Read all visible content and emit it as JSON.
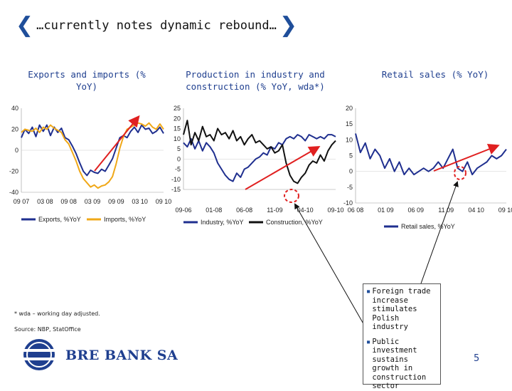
{
  "slide": {
    "title": "…currently notes dynamic rebound…",
    "footnote": "* wda – working day adjusted.",
    "source": "Source: NBP, StatOffice",
    "bank_name": "BRE BANK SA",
    "page_number": "5",
    "callout": {
      "items": [
        "Foreign trade increase stimulates Polish industry",
        "Public investment sustains growth in construction sector"
      ]
    }
  },
  "colors": {
    "navy": "#1f2f8f",
    "orange": "#f0a818",
    "black": "#111111",
    "arrow_red": "#e02020",
    "accent_blue": "#1f4e9a"
  },
  "chart_data": [
    {
      "type": "line",
      "title": "Exports and imports (% YoY)",
      "x_tick_labels": [
        "09 07",
        "03 08",
        "09 08",
        "03 09",
        "09 09",
        "03 10",
        "09 10"
      ],
      "ylim": [
        -40,
        40
      ],
      "y_ticks": [
        -40,
        -20,
        0,
        20,
        40
      ],
      "legend_position": "bottom",
      "series": [
        {
          "name": "Exports, %YoY",
          "color": "#1f2f8f",
          "values": [
            12,
            20,
            16,
            22,
            13,
            24,
            18,
            24,
            14,
            22,
            17,
            21,
            12,
            10,
            4,
            -3,
            -12,
            -20,
            -24,
            -19,
            -21,
            -22,
            -18,
            -20,
            -14,
            -8,
            2,
            12,
            14,
            12,
            18,
            22,
            17,
            24,
            20,
            21,
            16,
            18,
            22,
            16
          ]
        },
        {
          "name": "Imports, %YoY",
          "color": "#f0a818",
          "values": [
            17,
            20,
            19,
            18,
            21,
            17,
            22,
            20,
            24,
            21,
            19,
            17,
            10,
            6,
            -2,
            -10,
            -20,
            -27,
            -31,
            -35,
            -33,
            -36,
            -34,
            -33,
            -30,
            -25,
            -13,
            2,
            13,
            20,
            22,
            24,
            26,
            25,
            23,
            26,
            22,
            20,
            25,
            20
          ]
        }
      ]
    },
    {
      "type": "line",
      "title": "Production in industry and construction (% YoY, wda*)",
      "x_tick_labels": [
        "09-06",
        "01-08",
        "06-08",
        "11-09",
        "04-10",
        "09-10"
      ],
      "ylim": [
        -15,
        25
      ],
      "y_ticks": [
        -15,
        -10,
        -5,
        0,
        5,
        10,
        15,
        20,
        25
      ],
      "legend_position": "bottom",
      "series": [
        {
          "name": "Industry, %YoY",
          "color": "#1f2f8f",
          "values": [
            8,
            6,
            10,
            5,
            9,
            4,
            8,
            6,
            3,
            -2,
            -5,
            -8,
            -10,
            -11,
            -7,
            -9,
            -5,
            -4,
            -2,
            0,
            1,
            3,
            2,
            6,
            5,
            8,
            7,
            10,
            11,
            10,
            12,
            11,
            9,
            12,
            11,
            10,
            11,
            10,
            12,
            12,
            11
          ]
        },
        {
          "name": "Construction, %YoY",
          "color": "#111111",
          "values": [
            12,
            19,
            7,
            13,
            9,
            16,
            11,
            12,
            9,
            15,
            12,
            13,
            10,
            14,
            9,
            11,
            7,
            10,
            12,
            8,
            9,
            7,
            5,
            6,
            3,
            4,
            7,
            -2,
            -8,
            -11,
            -12,
            -9,
            -7,
            -3,
            -1,
            -2,
            2,
            -1,
            4,
            7,
            9
          ]
        }
      ]
    },
    {
      "type": "line",
      "title": "Retail sales (% YoY)",
      "x_tick_labels": [
        "06 08",
        "01 09",
        "06 09",
        "11 09",
        "04 10",
        "09 10"
      ],
      "ylim": [
        -10,
        20
      ],
      "y_ticks": [
        -10,
        -5,
        0,
        5,
        10,
        15,
        20
      ],
      "legend_position": "bottom",
      "series": [
        {
          "name": "Retail sales, %YoY",
          "color": "#1f2f8f",
          "values": [
            12,
            6,
            9,
            4,
            7,
            5,
            1,
            4,
            0,
            3,
            -1,
            1,
            -1,
            0,
            1,
            0,
            1,
            3,
            1,
            4,
            7,
            1,
            0,
            3,
            -1,
            1,
            2,
            3,
            5,
            4,
            5,
            7
          ]
        }
      ]
    }
  ]
}
